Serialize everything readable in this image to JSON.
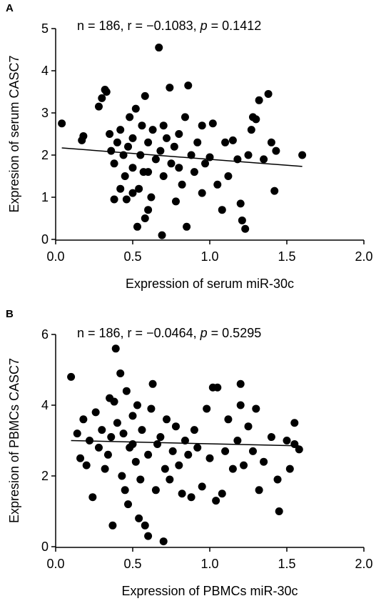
{
  "chart_data": [
    {
      "type": "scatter",
      "panel_label": "A",
      "annotation": [
        "n = 186, r = −0.1083, ",
        "p",
        " = 0.1412"
      ],
      "x_label": "Expression of serum miR-30c",
      "y_label": "Expresion of serum CASC7",
      "xlim": [
        0,
        2
      ],
      "ylim": [
        0,
        5
      ],
      "xticks": [
        {
          "value": 0,
          "label": "0.0"
        },
        {
          "value": 0.5,
          "label": "0.5"
        },
        {
          "value": 1,
          "label": "1.0"
        },
        {
          "value": 1.5,
          "label": "1.5"
        },
        {
          "value": 2,
          "label": "2.0"
        }
      ],
      "yticks": [
        0,
        1,
        2,
        3,
        4,
        5
      ],
      "color": "#000000",
      "x": [
        0.04,
        0.17,
        0.18,
        0.28,
        0.3,
        0.32,
        0.33,
        0.35,
        0.36,
        0.38,
        0.38,
        0.4,
        0.42,
        0.42,
        0.44,
        0.45,
        0.46,
        0.47,
        0.48,
        0.5,
        0.5,
        0.52,
        0.53,
        0.54,
        0.55,
        0.56,
        0.57,
        0.58,
        0.58,
        0.6,
        0.6,
        0.62,
        0.63,
        0.65,
        0.67,
        0.68,
        0.69,
        0.7,
        0.72,
        0.74,
        0.75,
        0.77,
        0.78,
        0.8,
        0.82,
        0.84,
        0.85,
        0.86,
        0.88,
        0.9,
        0.92,
        0.95,
        0.97,
        1.0,
        1.02,
        1.05,
        1.08,
        1.1,
        1.12,
        1.15,
        1.18,
        1.2,
        1.21,
        1.23,
        1.25,
        1.27,
        1.28,
        1.3,
        1.32,
        1.35,
        1.38,
        1.4,
        1.42,
        1.43,
        1.6,
        0.95,
        0.6,
        0.7,
        0.5,
        0.8
      ],
      "values": [
        2.75,
        2.35,
        2.45,
        3.15,
        3.35,
        3.55,
        3.5,
        2.5,
        2.1,
        0.95,
        1.8,
        2.3,
        1.2,
        2.6,
        2.0,
        1.5,
        0.95,
        2.2,
        2.9,
        1.7,
        2.4,
        3.1,
        0.3,
        1.2,
        2.0,
        2.7,
        1.6,
        3.4,
        0.5,
        0.7,
        2.3,
        1.0,
        2.6,
        1.9,
        4.55,
        2.1,
        0.1,
        1.5,
        2.4,
        3.6,
        1.8,
        2.2,
        0.9,
        2.5,
        1.3,
        2.9,
        0.3,
        3.65,
        2.0,
        1.6,
        2.3,
        1.1,
        1.8,
        1.95,
        2.75,
        1.3,
        0.7,
        2.3,
        1.5,
        2.35,
        1.9,
        0.85,
        0.45,
        0.25,
        2.0,
        2.6,
        2.9,
        2.85,
        3.3,
        1.9,
        3.45,
        2.3,
        1.15,
        2.1,
        2.0,
        2.7,
        1.6,
        2.7,
        1.1,
        1.7
      ],
      "fit_line": {
        "x": [
          0.04,
          1.6
        ],
        "y": [
          2.17,
          1.73
        ]
      }
    },
    {
      "type": "scatter",
      "panel_label": "B",
      "annotation": [
        "n = 186, r = −0.0464, ",
        "p",
        " = 0.5295"
      ],
      "x_label": "Expression of PBMCs miR-30c",
      "y_label": "Expresion of PBMCs CASC7",
      "xlim": [
        0,
        2
      ],
      "ylim": [
        0,
        6
      ],
      "xticks": [
        {
          "value": 0,
          "label": "0.0"
        },
        {
          "value": 0.5,
          "label": "0.5"
        },
        {
          "value": 1,
          "label": "1.0"
        },
        {
          "value": 1.5,
          "label": "1.5"
        },
        {
          "value": 2,
          "label": "2.0"
        }
      ],
      "yticks": [
        0,
        2,
        4,
        6
      ],
      "color": "#000000",
      "x": [
        0.1,
        0.14,
        0.16,
        0.18,
        0.2,
        0.22,
        0.24,
        0.26,
        0.28,
        0.3,
        0.32,
        0.34,
        0.36,
        0.37,
        0.38,
        0.39,
        0.4,
        0.42,
        0.43,
        0.44,
        0.45,
        0.46,
        0.47,
        0.48,
        0.5,
        0.52,
        0.53,
        0.54,
        0.55,
        0.56,
        0.58,
        0.6,
        0.6,
        0.62,
        0.63,
        0.65,
        0.66,
        0.68,
        0.7,
        0.71,
        0.72,
        0.74,
        0.76,
        0.78,
        0.8,
        0.82,
        0.84,
        0.86,
        0.88,
        0.9,
        0.92,
        0.95,
        0.98,
        1.0,
        1.02,
        1.04,
        1.05,
        1.08,
        1.1,
        1.12,
        1.15,
        1.18,
        1.2,
        1.2,
        1.22,
        1.25,
        1.28,
        1.3,
        1.32,
        1.35,
        1.4,
        1.44,
        1.45,
        1.5,
        1.52,
        1.55,
        1.58,
        1.55,
        0.35,
        0.5
      ],
      "values": [
        4.8,
        3.2,
        2.5,
        3.6,
        2.3,
        3.0,
        1.4,
        3.8,
        2.8,
        3.3,
        2.2,
        2.6,
        3.1,
        0.6,
        4.1,
        5.6,
        3.5,
        4.9,
        2.0,
        3.2,
        1.6,
        4.4,
        1.2,
        2.8,
        3.7,
        2.4,
        4.0,
        0.8,
        1.9,
        3.3,
        0.6,
        2.6,
        0.3,
        3.9,
        4.6,
        1.6,
        2.9,
        3.1,
        0.15,
        2.2,
        3.6,
        1.9,
        2.7,
        3.4,
        2.3,
        1.5,
        3.0,
        2.6,
        1.4,
        3.3,
        2.8,
        1.7,
        3.9,
        2.5,
        4.5,
        1.3,
        4.5,
        1.5,
        2.7,
        3.6,
        2.2,
        3.0,
        4.0,
        4.6,
        2.3,
        3.4,
        2.7,
        3.9,
        1.6,
        2.4,
        3.1,
        1.9,
        1.0,
        3.0,
        2.2,
        3.5,
        2.75,
        2.9,
        4.2,
        2.9
      ],
      "fit_line": {
        "x": [
          0.1,
          1.58
        ],
        "y": [
          3.0,
          2.85
        ]
      }
    }
  ]
}
